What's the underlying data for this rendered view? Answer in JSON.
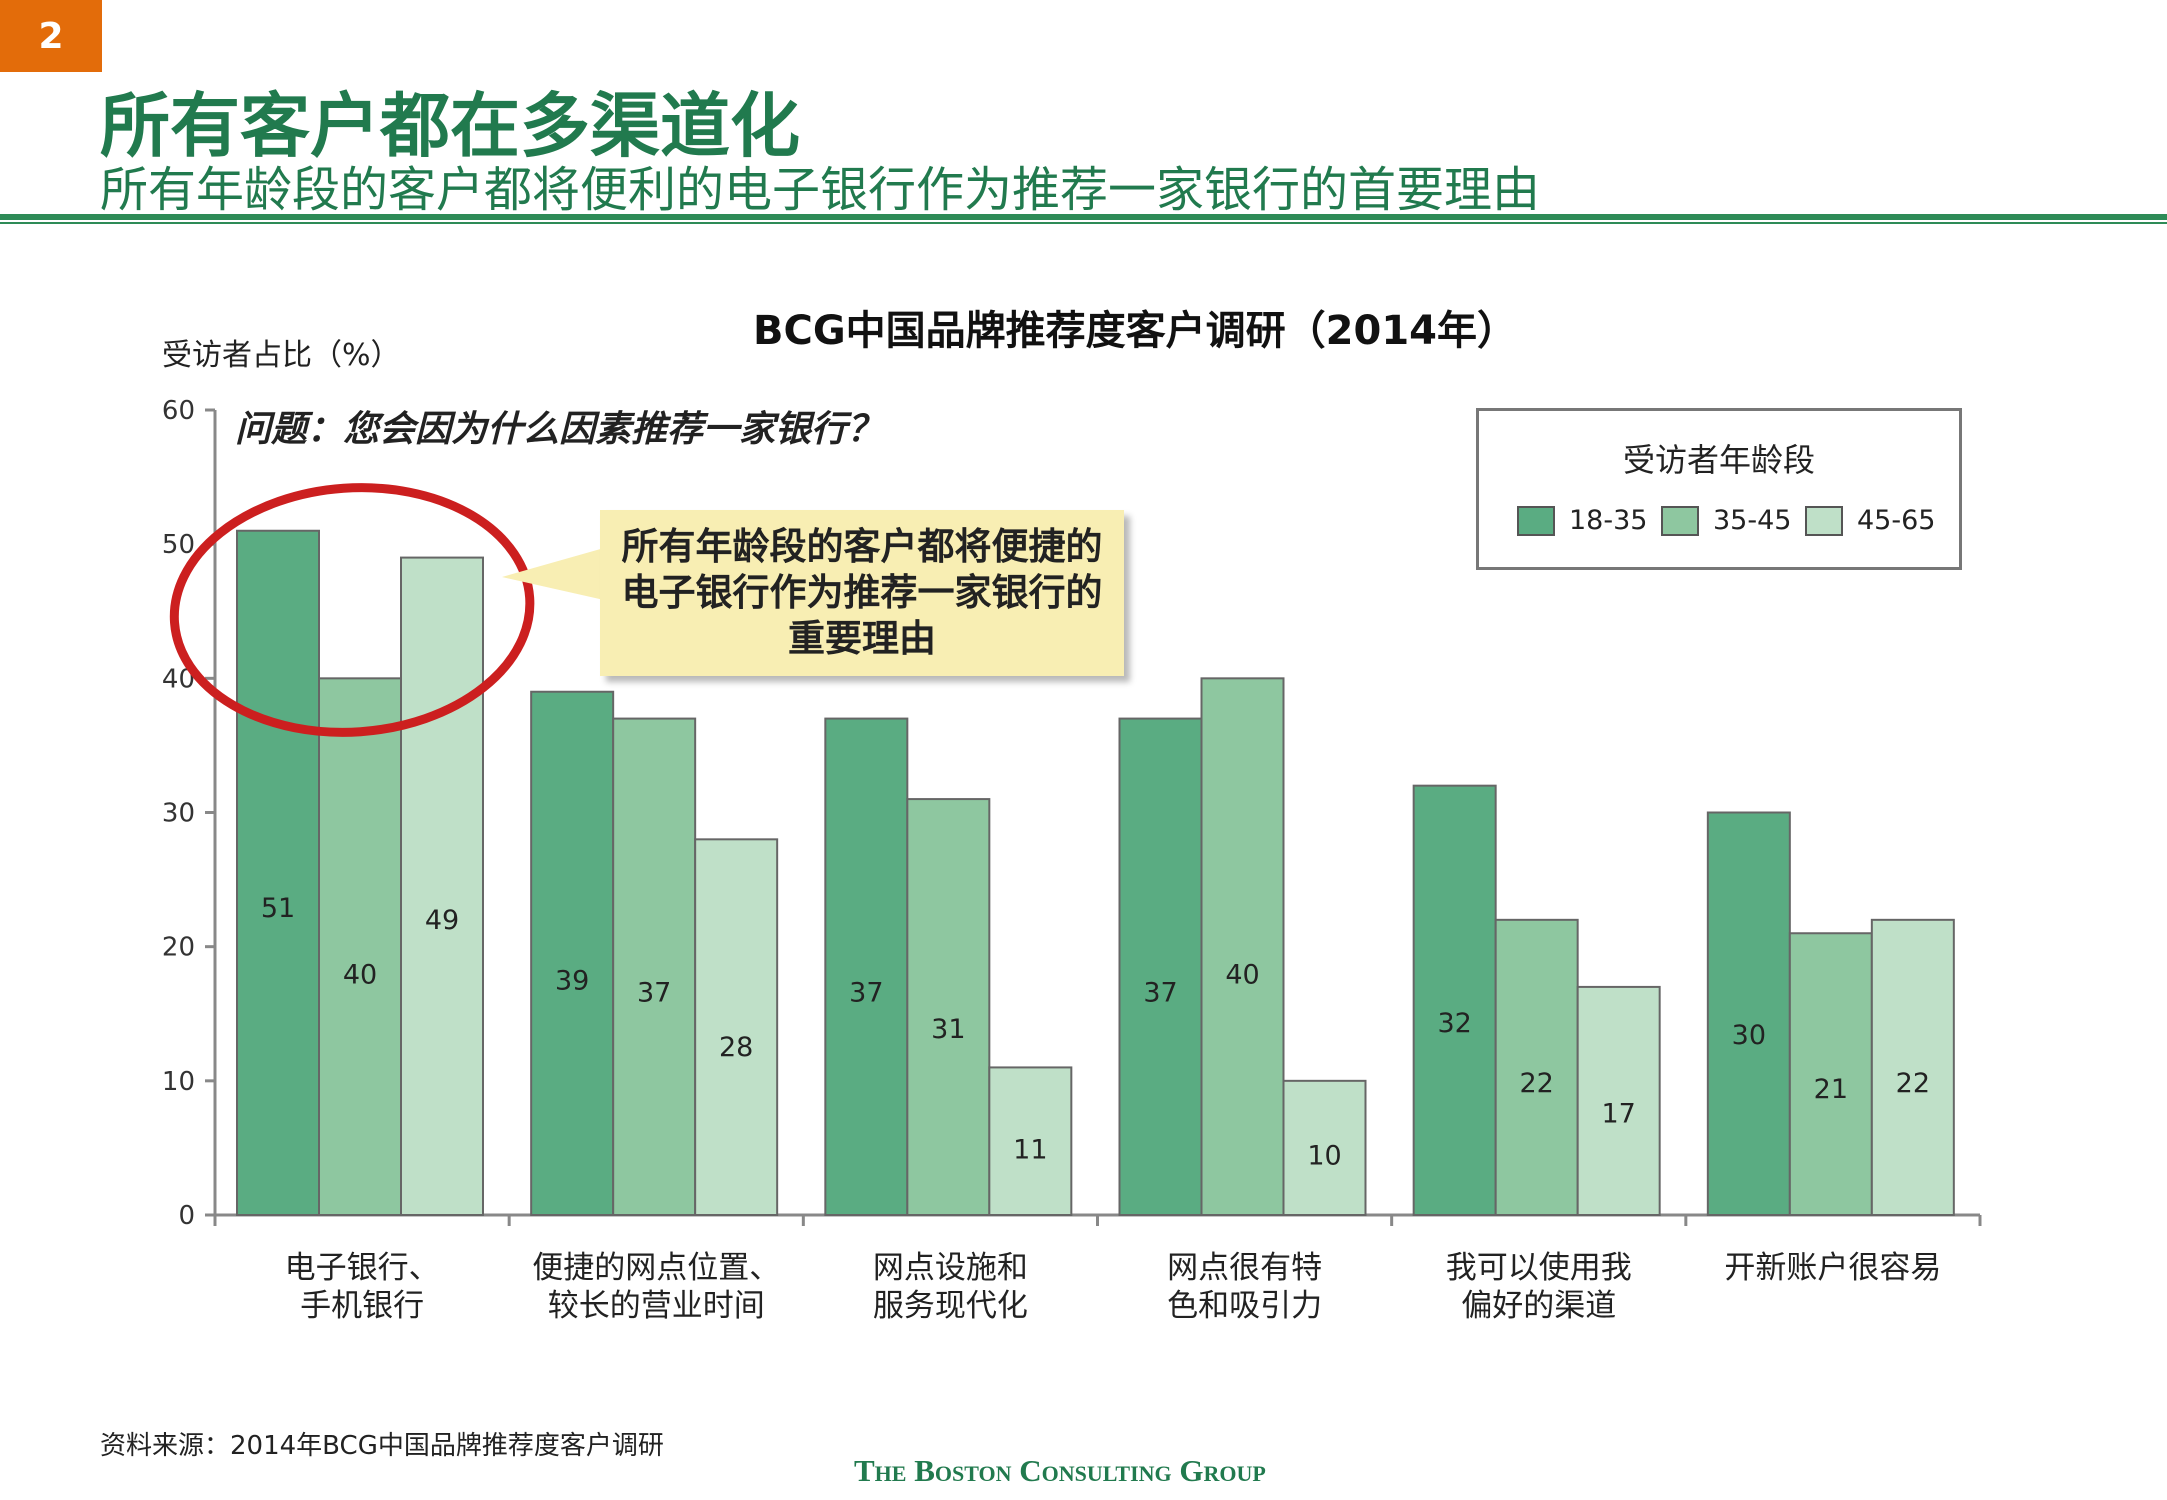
{
  "page": {
    "number": "2"
  },
  "header": {
    "title": "所有客户都在多渠道化",
    "subtitle": "所有年龄段的客户都将便利的电子银行作为推荐一家银行的首要理由"
  },
  "question": "问题：您会因为什么因素推荐一家银行？",
  "callout": "所有年龄段的客户都将便捷的电子银行作为推荐一家银行的重要理由",
  "legend": {
    "title": "受访者年龄段",
    "items": [
      "18-35",
      "35-45",
      "45-65"
    ]
  },
  "colors": {
    "series": [
      "#5aac82",
      "#8ec7a0",
      "#bfe0c8"
    ],
    "title": "#217a4e",
    "page_badge": "#e36c0a",
    "highlight_ring": "#cc1f1f",
    "callout_bg": "#f8eeb3"
  },
  "chart_data": {
    "type": "bar",
    "title": "BCG中国品牌推荐度客户调研（2014年）",
    "ylabel": "受访者占比（%）",
    "xlabel": "",
    "ylim": [
      0,
      60
    ],
    "yticks": [
      0,
      10,
      20,
      30,
      40,
      50,
      60
    ],
    "grid": false,
    "legend_position": "top-right",
    "categories": [
      [
        "电子银行、",
        "手机银行"
      ],
      [
        "便捷的网点位置、",
        "较长的营业时间"
      ],
      [
        "网点设施和",
        "服务现代化"
      ],
      [
        "网点很有特",
        "色和吸引力"
      ],
      [
        "我可以使用我",
        "偏好的渠道"
      ],
      [
        "开新账户很容易"
      ]
    ],
    "series": [
      {
        "name": "18-35",
        "values": [
          51,
          39,
          37,
          37,
          32,
          30
        ]
      },
      {
        "name": "35-45",
        "values": [
          40,
          37,
          31,
          40,
          22,
          21
        ]
      },
      {
        "name": "45-65",
        "values": [
          49,
          28,
          11,
          10,
          17,
          22
        ]
      }
    ],
    "highlight_category": 0
  },
  "footer": {
    "source": "资料来源：2014年BCG中国品牌推荐度客户调研",
    "logo": "The Boston Consulting Group"
  }
}
